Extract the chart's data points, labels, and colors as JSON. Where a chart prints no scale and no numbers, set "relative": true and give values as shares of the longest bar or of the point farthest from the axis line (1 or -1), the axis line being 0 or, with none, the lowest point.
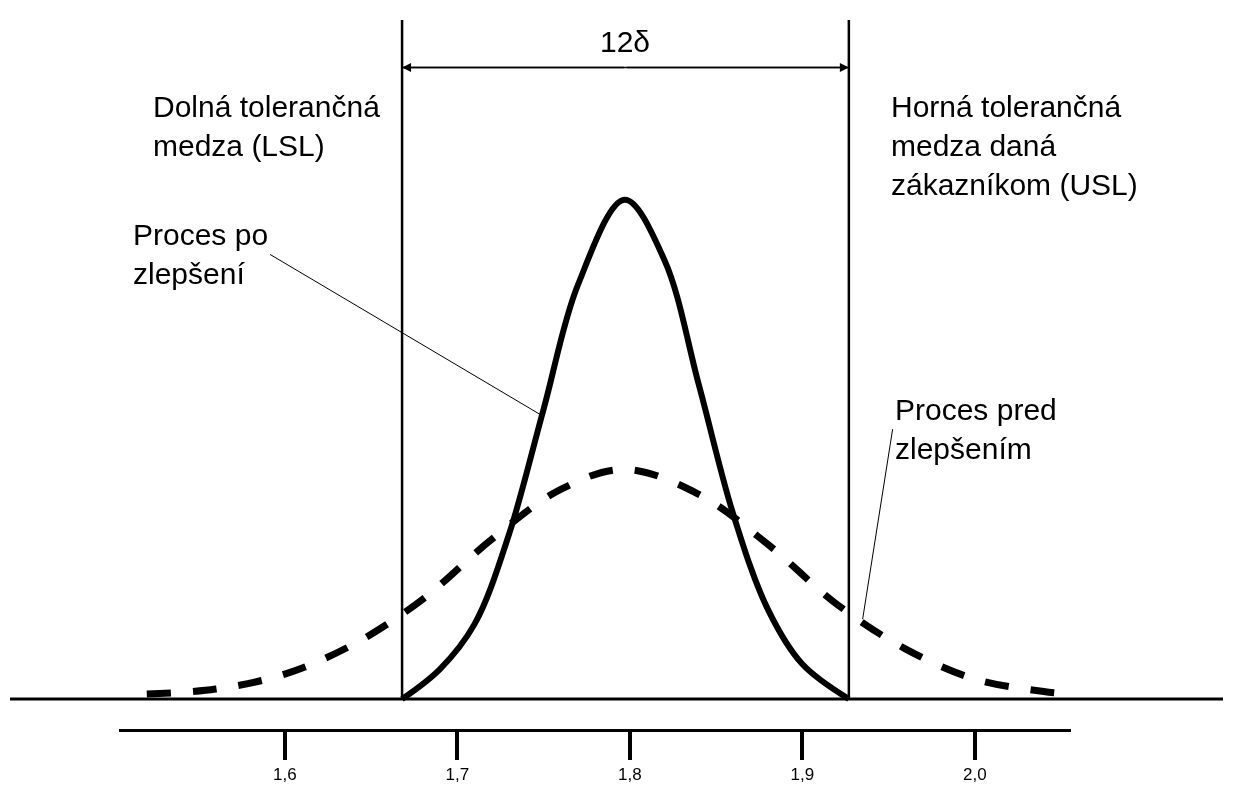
{
  "chart_data": {
    "type": "line",
    "relative": true,
    "xlim": [
      1.504,
      2.056
    ],
    "xticks": [
      {
        "value": 1.6,
        "label": "1,6"
      },
      {
        "value": 1.7,
        "label": "1,7"
      },
      {
        "value": 1.8,
        "label": "1,8"
      },
      {
        "value": 1.9,
        "label": "1,9"
      },
      {
        "value": 2.0,
        "label": "2,0"
      }
    ],
    "tick_labels": "x",
    "series": [
      {
        "color": "#000000",
        "line_style": "solid",
        "x": [
          1.668,
          1.69,
          1.71,
          1.73,
          1.75,
          1.77,
          1.797,
          1.82,
          1.84,
          1.86,
          1.88,
          1.9,
          1.927
        ],
        "values": [
          0,
          0.06,
          0.15,
          0.33,
          0.58,
          0.83,
          1,
          0.88,
          0.63,
          0.37,
          0.18,
          0.07,
          0
        ]
      },
      {
        "color": "#000000",
        "line_style": "dashed",
        "x": [
          1.52,
          1.56,
          1.6,
          1.64,
          1.68,
          1.72,
          1.76,
          1.797,
          1.84,
          1.88,
          1.92,
          1.96,
          2.0,
          2.04,
          2.055
        ],
        "values": [
          0.01,
          0.02,
          0.05,
          0.11,
          0.2,
          0.32,
          0.42,
          0.46,
          0.41,
          0.31,
          0.19,
          0.1,
          0.04,
          0.015,
          0.01
        ]
      }
    ],
    "ref_lines": [
      {
        "axis": "x",
        "value": 1.668,
        "label": "Dolná tolerančná\nmedza (LSL)",
        "color": "#000000"
      },
      {
        "axis": "x",
        "value": 1.927,
        "label": "Horná tolerančná\nmedza daná\nzákazníkom (USL)",
        "color": "#000000"
      }
    ],
    "annotations": [
      "12δ",
      {
        "text": "Proces po\nzlepšení",
        "x": 1.748,
        "y": 0.57
      },
      {
        "text": "Proces pred\nzlepšením",
        "x": 1.935,
        "y": 0.16
      }
    ]
  }
}
